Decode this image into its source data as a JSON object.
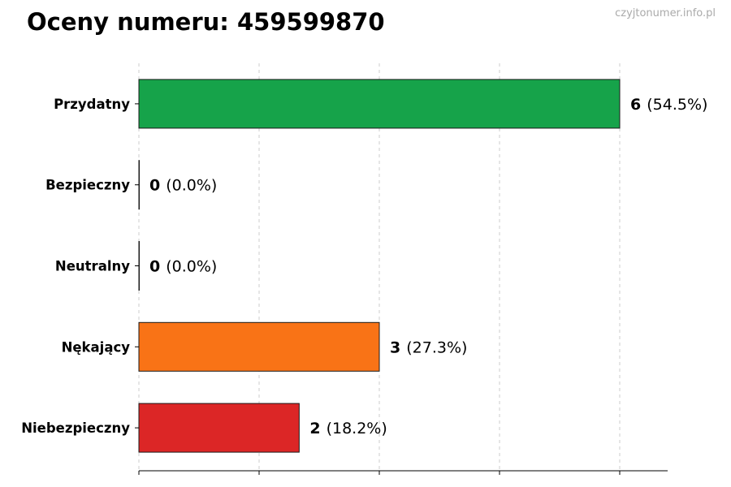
{
  "title": "Oceny numeru: 459599870",
  "watermark": "czyjtonumer.info.pl",
  "chart_data": {
    "type": "bar",
    "orientation": "horizontal",
    "title": "Oceny numeru: 459599870",
    "xlabel": "",
    "ylabel": "",
    "categories": [
      "Przydatny",
      "Bezpieczny",
      "Neutralny",
      "Nękający",
      "Niebezpieczny"
    ],
    "values": [
      6,
      0,
      0,
      3,
      2
    ],
    "percent_labels": [
      "(54.5%)",
      "(0.0%)",
      "(0.0%)",
      "(27.3%)",
      "(18.2%)"
    ],
    "colors": [
      "#16a34a",
      "#16a34a",
      "#16a34a",
      "#f97316",
      "#dc2626"
    ],
    "xlim": [
      0,
      6.6
    ],
    "x_ticks": [
      0,
      1.5,
      3,
      4.5,
      6
    ],
    "grid": "vertical dashed",
    "legend": "none"
  }
}
